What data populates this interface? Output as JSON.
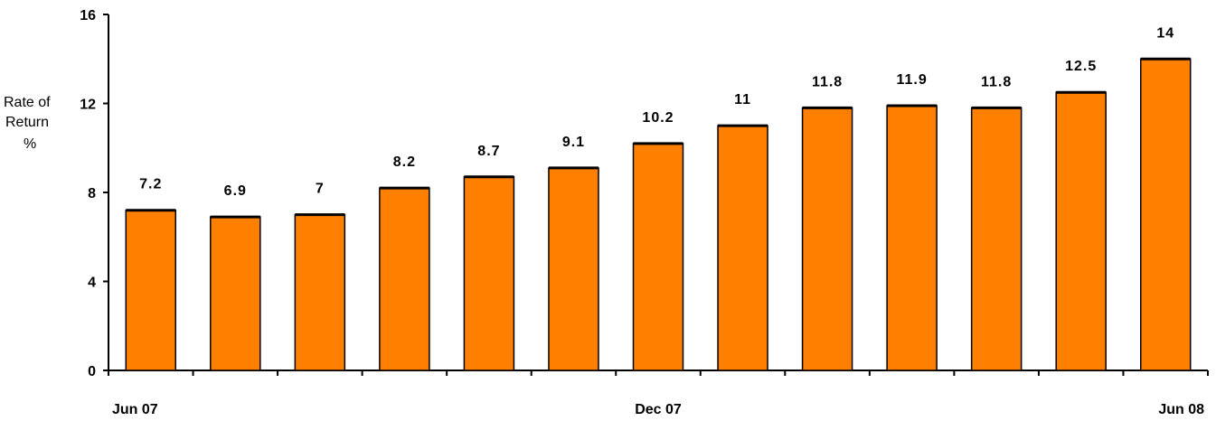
{
  "chart_data": {
    "type": "bar",
    "categories": [
      "Jun 07",
      "",
      "",
      "",
      "",
      "",
      "Dec 07",
      "",
      "",
      "",
      "",
      "",
      "Jun 08"
    ],
    "values": [
      7.2,
      6.9,
      7,
      8.2,
      8.7,
      9.1,
      10.2,
      11,
      11.8,
      11.9,
      11.8,
      12.5,
      14
    ],
    "value_labels": [
      "7.2",
      "6.9",
      "7",
      "8.2",
      "8.7",
      "9.1",
      "10.2",
      "11",
      "11.8",
      "11.9",
      "11.8",
      "12.5",
      "14"
    ],
    "ylabel_lines": [
      "Rate of",
      "Return",
      "%"
    ],
    "yticks": [
      0,
      4,
      8,
      12,
      16
    ],
    "ylim": [
      0,
      16
    ],
    "grid": false,
    "bar_color": "#FF8000",
    "bar_outline": "#000000"
  }
}
